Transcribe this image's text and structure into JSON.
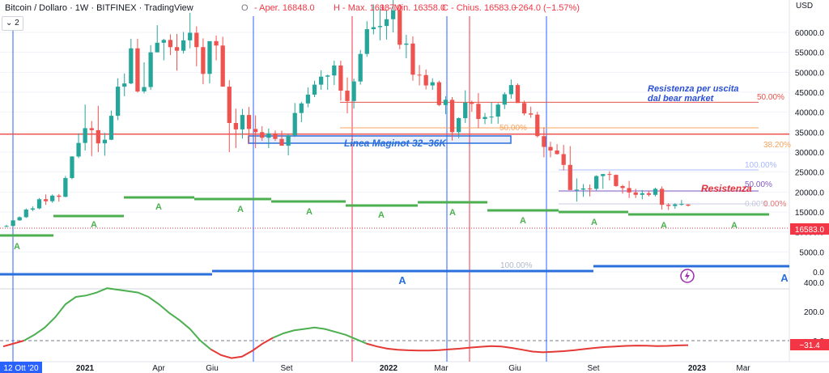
{
  "header": {
    "title": "Bitcoin / Dollaro · 1W · BITFINEX · TradingView",
    "open_label": "O",
    "open": "- Aper. 16848.0",
    "high": "H - Max. 16987.0",
    "low": "L - Min. 16358.0",
    "close": "C - Chius. 16583.0",
    "change": "−264.0 (−1.57%)",
    "dropdown_label": "2",
    "currency": "USD"
  },
  "colors": {
    "up": "#26a69a",
    "down": "#ef5350",
    "vline_blue": "#2962ff",
    "vline_red": "#f23645",
    "fib_orange": "#f7a35c",
    "fib_red": "#e5534b",
    "fib_blue": "#a8b8ff",
    "zone_blue": "#2a6fdb",
    "green_lvl": "#4caf50",
    "annot_blue": "#2a4fd6",
    "annot_red": "#e0313d",
    "cursor_price": "#f23645"
  },
  "chart_data": {
    "type": "candlestick",
    "price_axis_ticks": [
      "60000.0",
      "55000.0",
      "50000.0",
      "45000.0",
      "40000.0",
      "35000.0",
      "30000.0",
      "25000.0",
      "20000.0",
      "15000.0",
      "10000.0",
      "5000.0",
      "0.0"
    ],
    "price_label": "16583.0",
    "osc_axis_ticks": [
      "400.0",
      "200.0",
      "0.0"
    ],
    "osc_label": "−31.4",
    "time_ticks": [
      "2021",
      "Apr",
      "Giu",
      "Set",
      "2022",
      "Mar",
      "Giu",
      "Set",
      "2023",
      "Mar"
    ],
    "time_cursor": "12 Ott '20",
    "candles_ohlc": [
      [
        11400,
        11800,
        11200,
        11500
      ],
      [
        11500,
        13100,
        11400,
        12900
      ],
      [
        12900,
        13900,
        12800,
        13700
      ],
      [
        13700,
        15900,
        13500,
        15600
      ],
      [
        15600,
        16400,
        15200,
        15900
      ],
      [
        15900,
        18500,
        15700,
        18200
      ],
      [
        18200,
        19400,
        16800,
        17700
      ],
      [
        17700,
        19400,
        17300,
        19100
      ],
      [
        19100,
        19500,
        17600,
        18800
      ],
      [
        18800,
        24000,
        18700,
        23500
      ],
      [
        23500,
        29000,
        23200,
        28900
      ],
      [
        28900,
        34700,
        28500,
        32300
      ],
      [
        32300,
        41900,
        30400,
        36000
      ],
      [
        36000,
        37800,
        29000,
        35500
      ],
      [
        35500,
        41600,
        30000,
        32200
      ],
      [
        32200,
        34800,
        29100,
        33100
      ],
      [
        33100,
        40400,
        33000,
        39100
      ],
      [
        39100,
        48500,
        38000,
        46400
      ],
      [
        46400,
        49700,
        44000,
        47200
      ],
      [
        47200,
        58400,
        47000,
        56000
      ],
      [
        56000,
        58400,
        44900,
        45200
      ],
      [
        45200,
        52500,
        44700,
        46300
      ],
      [
        46300,
        56800,
        45600,
        55000
      ],
      [
        55000,
        61800,
        55000,
        57400
      ],
      [
        57400,
        58400,
        53000,
        58100
      ],
      [
        58100,
        59500,
        54300,
        56300
      ],
      [
        56300,
        59600,
        50400,
        55400
      ],
      [
        55400,
        60100,
        54700,
        58000
      ],
      [
        58000,
        64900,
        56000,
        59900
      ],
      [
        59900,
        61500,
        51500,
        56300
      ],
      [
        56300,
        58500,
        47000,
        49600
      ],
      [
        49600,
        54500,
        47200,
        57800
      ],
      [
        57800,
        59200,
        53000,
        56700
      ],
      [
        56700,
        58900,
        46500,
        46400
      ],
      [
        46400,
        48000,
        30000,
        37300
      ],
      [
        37300,
        40900,
        31000,
        35700
      ],
      [
        35700,
        40800,
        33400,
        39300
      ],
      [
        39300,
        41300,
        32000,
        35800
      ],
      [
        35800,
        39200,
        31000,
        35000
      ],
      [
        35000,
        36500,
        32800,
        33600
      ],
      [
        33600,
        35900,
        31000,
        34700
      ],
      [
        34700,
        35400,
        32800,
        33300
      ],
      [
        33300,
        35400,
        32100,
        31600
      ],
      [
        31600,
        34600,
        29200,
        34200
      ],
      [
        34200,
        42300,
        33800,
        39800
      ],
      [
        39800,
        42600,
        37500,
        42200
      ],
      [
        42200,
        46200,
        41200,
        44400
      ],
      [
        44400,
        47900,
        43800,
        46900
      ],
      [
        46900,
        50500,
        45600,
        48900
      ],
      [
        48900,
        49400,
        45600,
        49200
      ],
      [
        49200,
        52900,
        46800,
        51700
      ],
      [
        51700,
        52900,
        42900,
        45400
      ],
      [
        45400,
        48700,
        39700,
        42800
      ],
      [
        42800,
        48400,
        40900,
        47700
      ],
      [
        47700,
        55600,
        46900,
        54600
      ],
      [
        54600,
        62800,
        53900,
        60800
      ],
      [
        60800,
        67000,
        59500,
        61300
      ],
      [
        61300,
        66000,
        58000,
        61600
      ],
      [
        61600,
        65500,
        58200,
        63300
      ],
      [
        63300,
        68800,
        60000,
        65500
      ],
      [
        65500,
        66000,
        55800,
        56900
      ],
      [
        56900,
        59400,
        53500,
        57200
      ],
      [
        57200,
        59000,
        47900,
        49400
      ],
      [
        49400,
        51800,
        46700,
        49300
      ],
      [
        49300,
        50700,
        45700,
        46700
      ],
      [
        46700,
        48500,
        45600,
        47500
      ],
      [
        47500,
        47900,
        41500,
        41800
      ],
      [
        41800,
        44000,
        39500,
        43100
      ],
      [
        43100,
        43800,
        32900,
        35000
      ],
      [
        35000,
        38700,
        33500,
        38500
      ],
      [
        38500,
        45500,
        37300,
        42400
      ],
      [
        42400,
        42900,
        40100,
        42100
      ],
      [
        42100,
        44800,
        36000,
        38300
      ],
      [
        38300,
        39800,
        37000,
        38800
      ],
      [
        38800,
        42500,
        37100,
        38900
      ],
      [
        38900,
        42300,
        37100,
        41900
      ],
      [
        41900,
        45000,
        40800,
        44500
      ],
      [
        44500,
        48200,
        43400,
        46800
      ],
      [
        46800,
        47200,
        42800,
        42300
      ],
      [
        42300,
        42900,
        39200,
        39700
      ],
      [
        39700,
        41400,
        38600,
        39400
      ],
      [
        39400,
        40100,
        33700,
        34000
      ],
      [
        34000,
        36200,
        28700,
        31300
      ],
      [
        31300,
        32600,
        28700,
        30400
      ],
      [
        30400,
        32000,
        29400,
        29500
      ],
      [
        29500,
        31800,
        25400,
        26800
      ],
      [
        26800,
        31500,
        20800,
        20500
      ],
      [
        20500,
        23400,
        17600,
        20600
      ],
      [
        20600,
        22000,
        18800,
        20900
      ],
      [
        20900,
        21900,
        18900,
        20800
      ],
      [
        20800,
        24200,
        20400,
        24000
      ],
      [
        24000,
        24500,
        20800,
        24500
      ],
      [
        24500,
        25200,
        22900,
        24300
      ],
      [
        24300,
        24400,
        21300,
        21500
      ],
      [
        21500,
        21800,
        19600,
        21000
      ],
      [
        21000,
        22800,
        18500,
        19900
      ],
      [
        19900,
        20800,
        18500,
        19300
      ],
      [
        19300,
        20500,
        18200,
        19700
      ],
      [
        19700,
        20300,
        18900,
        19300
      ],
      [
        19300,
        21100,
        18900,
        20800
      ],
      [
        20800,
        21400,
        15600,
        16800
      ],
      [
        16800,
        17200,
        15500,
        16500
      ],
      [
        16500,
        17200,
        15800,
        16900
      ],
      [
        16900,
        18000,
        16600,
        17000
      ],
      [
        16848,
        16987,
        16358,
        16583
      ]
    ],
    "horizontal_levels": [
      {
        "value": 34500,
        "color": "#ef5350"
      },
      {
        "value": 42500,
        "color": "#e5534b"
      },
      {
        "value": 16600,
        "color": "#f23645"
      }
    ],
    "annotations": [
      {
        "text": "Resistenza per uscita",
        "color": "#2a4fd6"
      },
      {
        "text": "dal bear market",
        "color": "#2a4fd6"
      },
      {
        "text": "Linea Maginot 32–36K",
        "color": "#2a6fdb"
      },
      {
        "text": "Resistenza",
        "color": "#e0313d"
      }
    ],
    "fib_labels": [
      "50.00%",
      "38.20%",
      "50.00%",
      "100.00%",
      "50.00%",
      "0.00%",
      "0.00%",
      "100.00%"
    ],
    "pattern_labels": [
      "A",
      "A",
      "A",
      "A",
      "A",
      "A",
      "A",
      "A",
      "A",
      "A",
      "A",
      "A"
    ],
    "oscillator": [
      -40,
      -20,
      0,
      40,
      90,
      160,
      250,
      300,
      310,
      330,
      360,
      350,
      340,
      330,
      300,
      250,
      190,
      140,
      80,
      0,
      -60,
      -100,
      -120,
      -110,
      -70,
      -20,
      20,
      50,
      70,
      80,
      90,
      80,
      60,
      40,
      10,
      -20,
      -40,
      -55,
      -62,
      -66,
      -68,
      -68,
      -65,
      -60,
      -55,
      -48,
      -42,
      -38,
      -40,
      -50,
      -62,
      -75,
      -80,
      -76,
      -72,
      -66,
      -58,
      -50,
      -44,
      -40,
      -36,
      -34,
      -35,
      -38,
      -36,
      -33,
      -31
    ]
  }
}
